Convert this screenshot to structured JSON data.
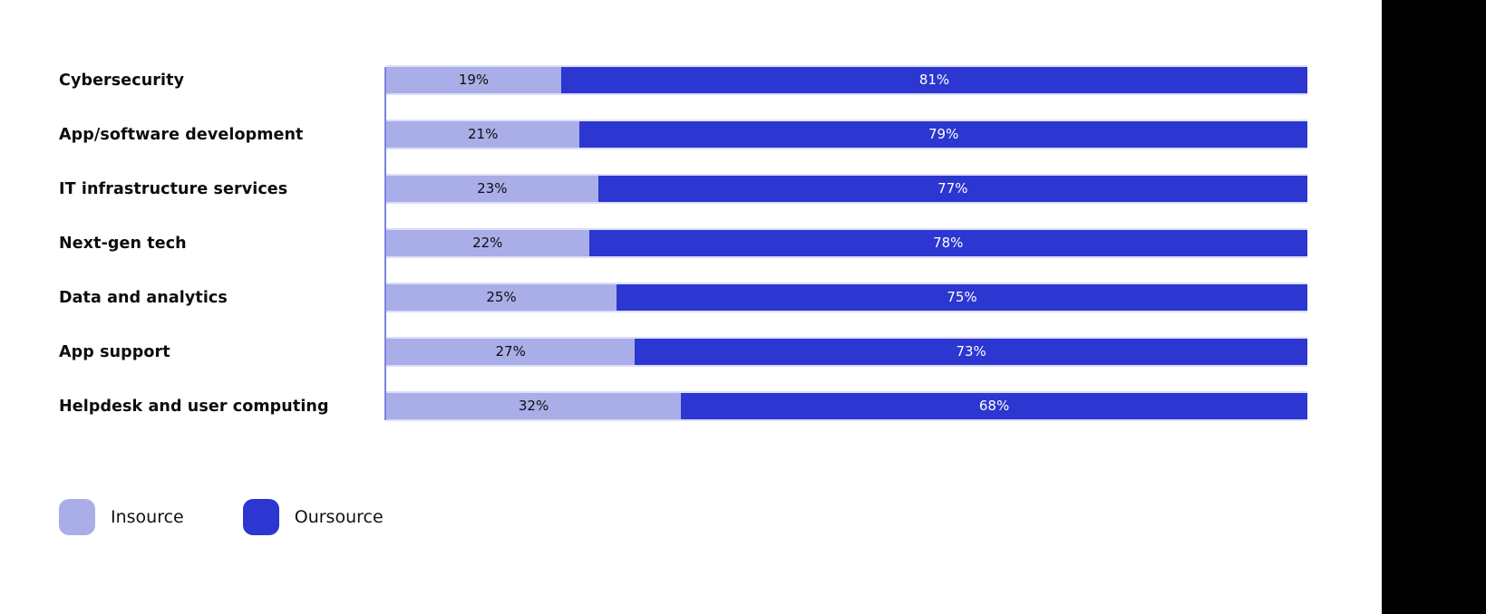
{
  "chart_data": {
    "type": "bar",
    "orientation": "horizontal",
    "stacked": true,
    "title": "",
    "xlabel": "",
    "ylabel": "",
    "xlim": [
      0,
      100
    ],
    "value_suffix": "%",
    "grid": false,
    "legend_position": "bottom-left",
    "categories": [
      "Cybersecurity",
      "App/software development",
      "IT infrastructure services",
      "Next-gen tech",
      "Data and analytics",
      "App support",
      "Helpdesk and user computing"
    ],
    "series": [
      {
        "name": "Insource",
        "color": "#A9AEE9",
        "label_color": "#0E0E0E",
        "values": [
          19,
          21,
          23,
          22,
          25,
          27,
          32
        ]
      },
      {
        "name": "Oursource",
        "color": "#2C36D0",
        "label_color": "#FFFFFF",
        "values": [
          81,
          79,
          77,
          78,
          75,
          73,
          68
        ]
      }
    ],
    "axis_line_color": "#7B83E1",
    "bar_outline_color": "#DCDEF8"
  },
  "page": {
    "background_color": "#FFFFFF",
    "right_panel_color": "#000000"
  }
}
